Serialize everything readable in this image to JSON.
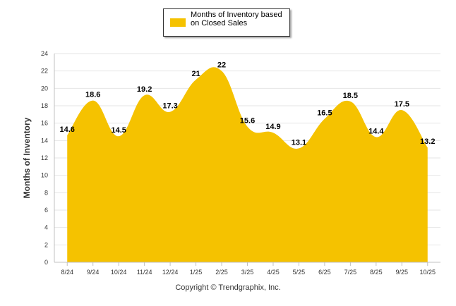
{
  "chart_data": {
    "type": "area",
    "title": "",
    "categories": [
      "8/24",
      "9/24",
      "10/24",
      "11/24",
      "12/24",
      "1/25",
      "2/25",
      "3/25",
      "4/25",
      "5/25",
      "6/25",
      "7/25",
      "8/25",
      "9/25",
      "10/25"
    ],
    "series": [
      {
        "name": "Months of Inventory based on Closed Sales",
        "values": [
          14.6,
          18.6,
          14.5,
          19.2,
          17.3,
          21,
          22,
          15.6,
          14.9,
          13.1,
          16.5,
          18.5,
          14.4,
          17.5,
          13.2
        ],
        "labels": [
          "14.6",
          "18.6",
          "14.5",
          "19.2",
          "17.3",
          "21",
          "22",
          "15.6",
          "14.9",
          "13.1",
          "16.5",
          "18.5",
          "14.4",
          "17.5",
          "13.2"
        ],
        "color": "#F5C200"
      }
    ],
    "ylabel": "Months of Inventory",
    "xlabel": "",
    "ylim": [
      0,
      24
    ],
    "yticks": [
      "0",
      "2",
      "4",
      "6",
      "8",
      "10",
      "12",
      "14",
      "16",
      "18",
      "20",
      "22",
      "24"
    ],
    "grid": true,
    "legend_position": "top-center"
  },
  "legend": {
    "label": "Months of Inventory based on Closed Sales",
    "color": "#F5C200"
  },
  "footer": {
    "copyright": "Copyright © Trendgraphix, Inc."
  }
}
